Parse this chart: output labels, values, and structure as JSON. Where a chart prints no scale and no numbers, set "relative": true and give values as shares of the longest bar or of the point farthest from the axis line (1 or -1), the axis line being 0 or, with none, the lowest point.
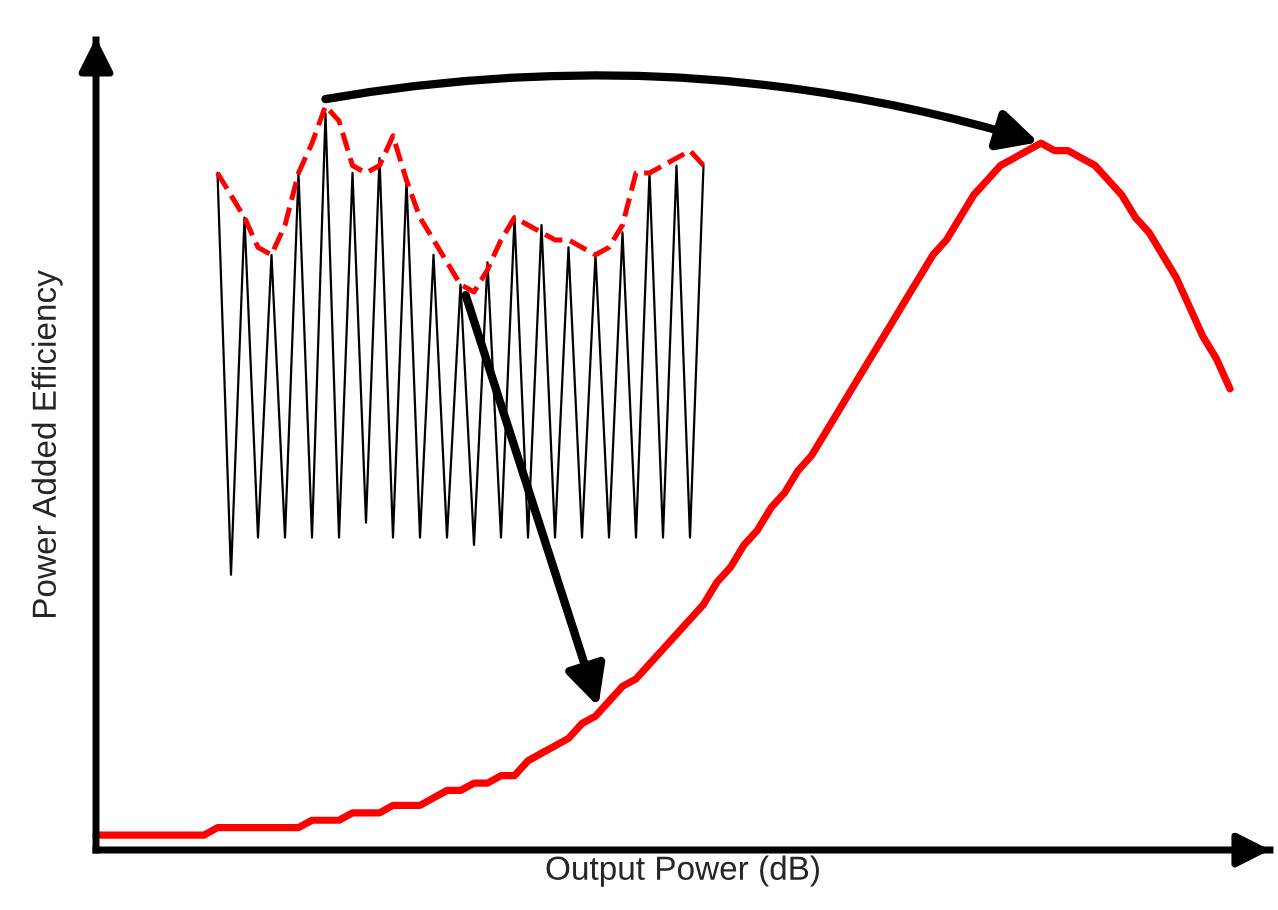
{
  "chart_data": {
    "type": "line",
    "relative": true,
    "xlabel": "Output Power (dB)",
    "ylabel": "Power Added Efficiency",
    "categories": [
      null,
      null,
      null,
      null,
      null,
      null,
      null,
      null,
      null,
      null,
      null,
      null,
      null,
      null,
      null,
      null,
      null,
      null,
      null,
      null,
      null,
      null,
      null,
      null,
      null,
      null,
      null,
      null,
      null,
      null,
      null,
      null,
      null,
      null,
      null,
      null,
      null,
      null,
      null,
      null,
      null,
      null,
      null,
      null,
      null,
      null,
      null,
      null,
      null,
      null,
      null,
      null,
      null,
      null,
      null,
      null,
      null,
      null,
      null,
      null,
      null,
      null,
      null,
      null,
      null,
      null,
      null,
      null,
      null,
      null,
      null,
      null,
      null,
      null,
      null,
      null,
      null,
      null,
      null,
      null,
      null,
      null,
      null,
      null,
      null
    ],
    "series": [
      {
        "color": "#ff0000",
        "values": [
          0.02,
          0.02,
          0.02,
          0.02,
          0.02,
          0.02,
          0.02,
          0.02,
          0.02,
          0.03,
          0.03,
          0.03,
          0.03,
          0.03,
          0.03,
          0.03,
          0.04,
          0.04,
          0.04,
          0.05,
          0.05,
          0.05,
          0.06,
          0.06,
          0.06,
          0.07,
          0.08,
          0.08,
          0.09,
          0.09,
          0.1,
          0.1,
          0.12,
          0.13,
          0.14,
          0.15,
          0.17,
          0.18,
          0.2,
          0.22,
          0.23,
          0.25,
          0.27,
          0.29,
          0.31,
          0.33,
          0.36,
          0.38,
          0.41,
          0.43,
          0.46,
          0.48,
          0.51,
          0.53,
          0.56,
          0.59,
          0.62,
          0.65,
          0.68,
          0.71,
          0.74,
          0.77,
          0.8,
          0.82,
          0.85,
          0.88,
          0.9,
          0.92,
          0.93,
          0.94,
          0.95,
          0.94,
          0.94,
          0.93,
          0.92,
          0.9,
          0.88,
          0.85,
          0.83,
          0.8,
          0.77,
          0.73,
          0.69,
          0.66,
          0.62
        ]
      },
      {
        "color": "#000000",
        "values": [
          null,
          null,
          null,
          null,
          null,
          null,
          null,
          null,
          null,
          0.91,
          0.37,
          0.85,
          0.42,
          0.8,
          0.42,
          0.91,
          0.42,
          0.99,
          0.42,
          0.91,
          0.44,
          0.93,
          0.42,
          0.9,
          0.42,
          0.8,
          0.42,
          0.76,
          0.41,
          0.79,
          0.42,
          0.85,
          0.42,
          0.84,
          0.42,
          0.81,
          0.42,
          0.8,
          0.42,
          0.83,
          0.42,
          0.91,
          0.42,
          0.92,
          0.42,
          0.92,
          null,
          null,
          null,
          null,
          null,
          null,
          null,
          null,
          null,
          null,
          null,
          null,
          null,
          null,
          null,
          null,
          null,
          null,
          null,
          null,
          null,
          null,
          null,
          null,
          null,
          null,
          null,
          null,
          null,
          null,
          null,
          null,
          null,
          null,
          null,
          null,
          null,
          null,
          null
        ]
      },
      {
        "color": "#ff0000",
        "line_style": "dashed",
        "values": [
          null,
          null,
          null,
          null,
          null,
          null,
          null,
          null,
          null,
          0.91,
          0.88,
          0.85,
          0.81,
          0.8,
          0.84,
          0.91,
          0.95,
          1.0,
          0.98,
          0.92,
          0.91,
          0.92,
          0.96,
          0.9,
          0.85,
          0.82,
          0.79,
          0.76,
          0.75,
          0.78,
          0.82,
          0.85,
          0.84,
          0.83,
          0.82,
          0.82,
          0.81,
          0.8,
          0.81,
          0.84,
          0.91,
          0.91,
          0.92,
          0.93,
          0.94,
          0.92,
          null,
          null,
          null,
          null,
          null,
          null,
          null,
          null,
          null,
          null,
          null,
          null,
          null,
          null,
          null,
          null,
          null,
          null,
          null,
          null,
          null,
          null,
          null,
          null,
          null,
          null,
          null,
          null,
          null,
          null,
          null,
          null,
          null,
          null,
          null,
          null,
          null,
          null,
          null
        ]
      }
    ]
  }
}
